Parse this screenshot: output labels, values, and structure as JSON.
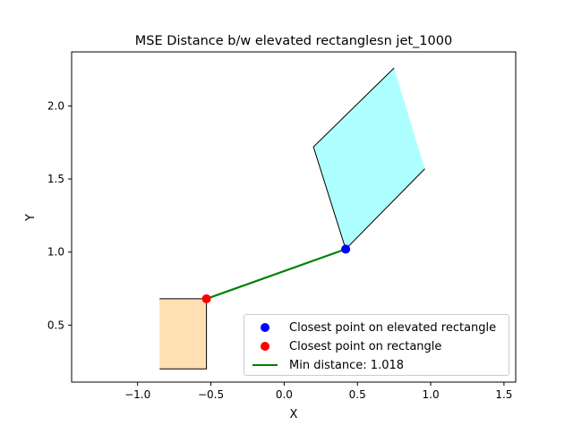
{
  "chart_data": {
    "type": "scatter",
    "title": "MSE Distance b/w elevated rectanglesn jet_1000",
    "xlabel": "X",
    "ylabel": "Y",
    "xlim": [
      -1.45,
      1.58
    ],
    "ylim": [
      0.11,
      2.37
    ],
    "xticks": [
      -1.0,
      -0.5,
      0.0,
      0.5,
      1.0,
      1.5
    ],
    "xtick_labels": [
      "−1.0",
      "−0.5",
      "0.0",
      "0.5",
      "1.0",
      "1.5"
    ],
    "yticks": [
      0.5,
      1.0,
      1.5,
      2.0
    ],
    "ytick_labels": [
      "0.5",
      "1.0",
      "1.5",
      "2.0"
    ],
    "grid": false,
    "legend_position": "lower-right",
    "rectangle": {
      "color": "#ffe0b2",
      "points": [
        [
          -0.85,
          0.2
        ],
        [
          -0.53,
          0.2
        ],
        [
          -0.53,
          0.68
        ],
        [
          -0.85,
          0.68
        ]
      ]
    },
    "elevated_rectangle": {
      "color": "#aeffff",
      "points": [
        [
          0.42,
          1.02
        ],
        [
          0.96,
          1.57
        ],
        [
          0.75,
          2.26
        ],
        [
          0.2,
          1.72
        ]
      ]
    },
    "closest_point_elevated": {
      "x": 0.42,
      "y": 1.02,
      "color": "#0000ff"
    },
    "closest_point_rectangle": {
      "x": -0.53,
      "y": 0.68,
      "color": "#ff0000"
    },
    "min_distance_line": {
      "color": "#008000",
      "x": [
        -0.53,
        0.42
      ],
      "y": [
        0.68,
        1.02
      ]
    },
    "legend": [
      {
        "label": "Closest point on elevated rectangle",
        "marker": "dot",
        "color": "#0000ff"
      },
      {
        "label": "Closest point on rectangle",
        "marker": "dot",
        "color": "#ff0000"
      },
      {
        "label": "Min distance: 1.018",
        "marker": "line",
        "color": "#008000"
      }
    ]
  }
}
